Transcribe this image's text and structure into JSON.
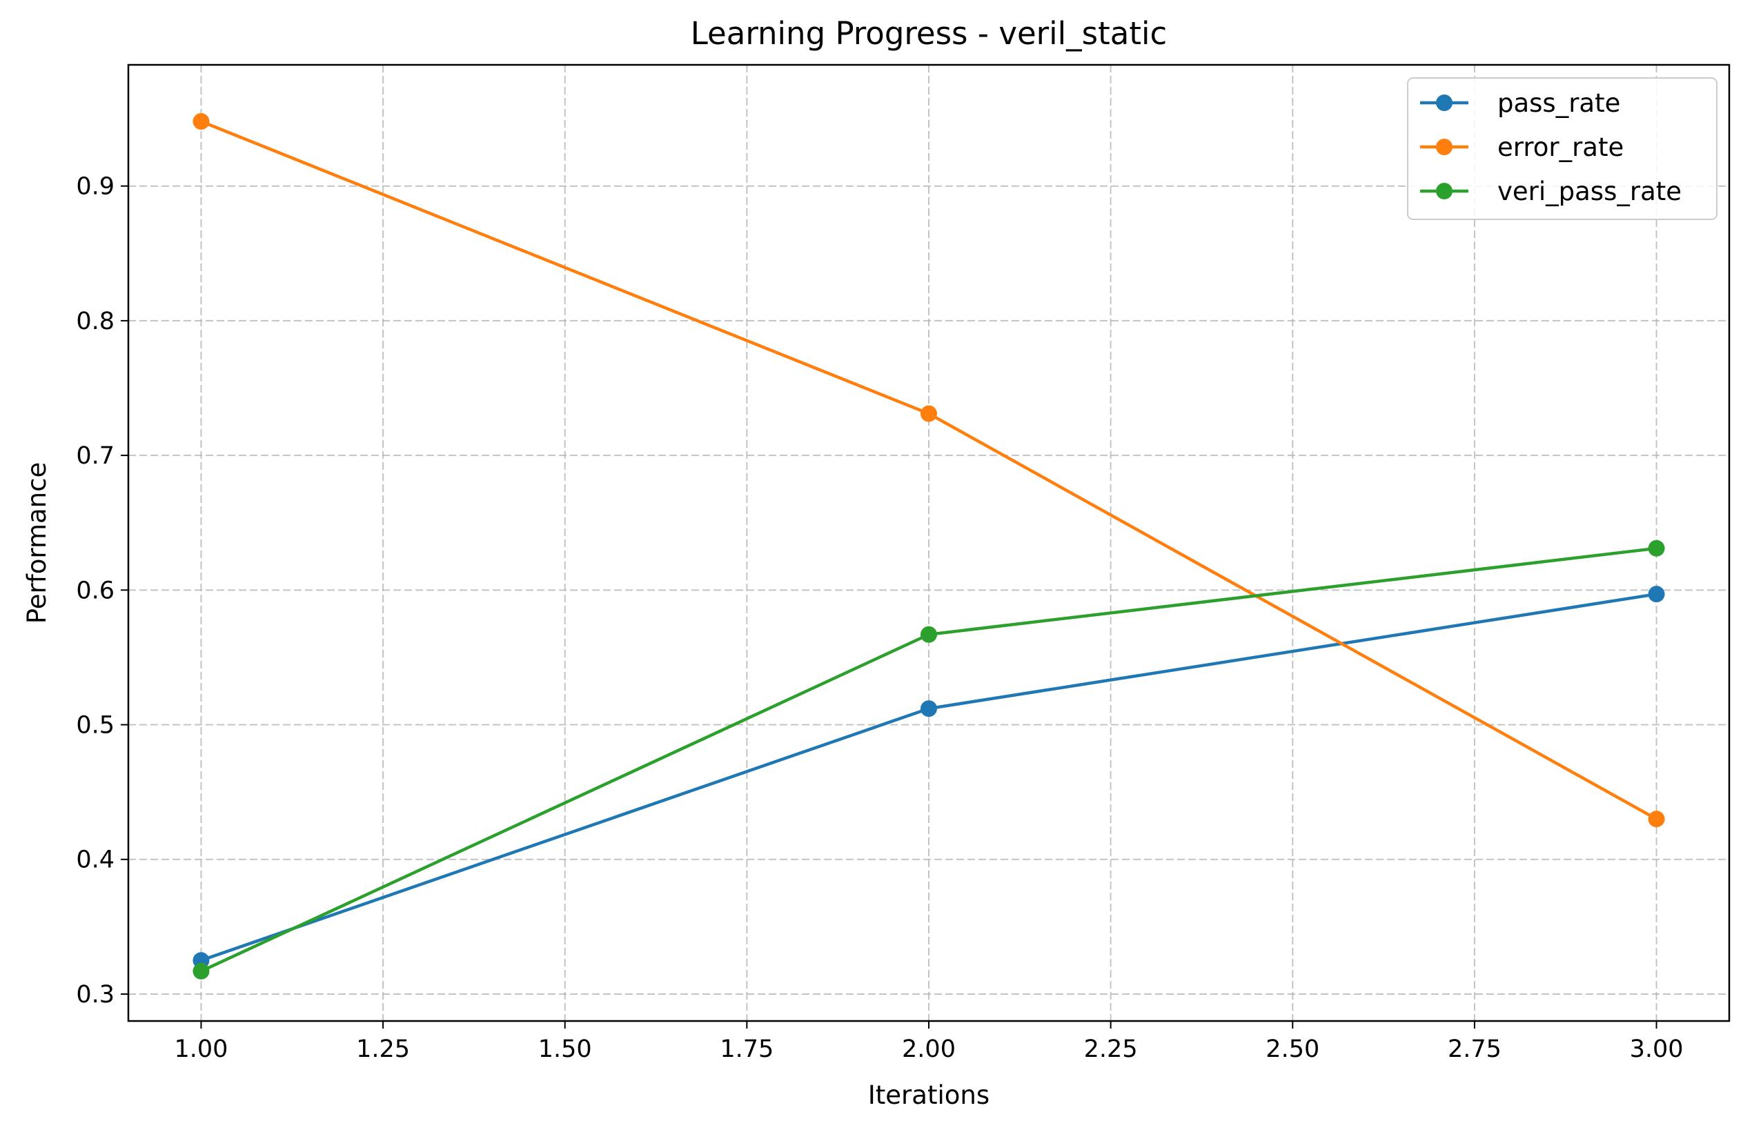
{
  "chart_data": {
    "type": "line",
    "title": "Learning Progress - veril_static",
    "xlabel": "Iterations",
    "ylabel": "Performance",
    "x": [
      1,
      2,
      3
    ],
    "xlim": [
      0.9,
      3.1
    ],
    "ylim": [
      0.28,
      0.99
    ],
    "xticks": [
      1.0,
      1.25,
      1.5,
      1.75,
      2.0,
      2.25,
      2.5,
      2.75,
      3.0
    ],
    "xtick_labels": [
      "1.00",
      "1.25",
      "1.50",
      "1.75",
      "2.00",
      "2.25",
      "2.50",
      "2.75",
      "3.00"
    ],
    "yticks": [
      0.3,
      0.4,
      0.5,
      0.6,
      0.7,
      0.8,
      0.9
    ],
    "ytick_labels": [
      "0.3",
      "0.4",
      "0.5",
      "0.6",
      "0.7",
      "0.8",
      "0.9"
    ],
    "grid": true,
    "legend_position": "top-right",
    "series": [
      {
        "name": "pass_rate",
        "color": "#1f77b4",
        "values": [
          0.325,
          0.512,
          0.597
        ]
      },
      {
        "name": "error_rate",
        "color": "#ff7f0e",
        "values": [
          0.948,
          0.731,
          0.43
        ]
      },
      {
        "name": "veri_pass_rate",
        "color": "#2ca02c",
        "values": [
          0.317,
          0.567,
          0.631
        ]
      }
    ]
  }
}
